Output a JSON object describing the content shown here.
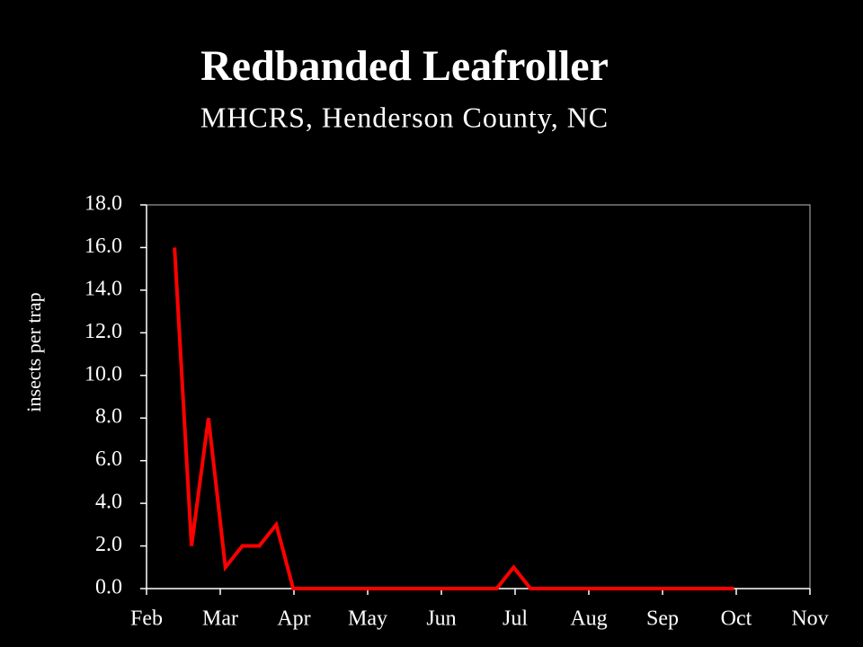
{
  "chart_data": {
    "type": "line",
    "title": "Redbanded Leafroller",
    "subtitle": "MHCRS, Henderson County, NC",
    "y_label": "insects per trap",
    "x": [
      0.38,
      0.61,
      0.84,
      1.07,
      1.3,
      1.53,
      1.76,
      1.99,
      2.22,
      2.45,
      2.68,
      2.91,
      3.14,
      3.37,
      3.6,
      3.83,
      4.06,
      4.29,
      4.52,
      4.75,
      4.98,
      5.21,
      5.44,
      5.67,
      5.9,
      6.13,
      6.36,
      6.59,
      6.82,
      7.05,
      7.28,
      7.51,
      7.74,
      7.97
    ],
    "series": [
      {
        "color": "#ff0000",
        "values": [
          16,
          2,
          8,
          1,
          2,
          2,
          3,
          0,
          0,
          0,
          0,
          0,
          0,
          0,
          0,
          0,
          0,
          0,
          0,
          0,
          1,
          0,
          0,
          0,
          0,
          0,
          0,
          0,
          0,
          0,
          0,
          0,
          0,
          0
        ]
      }
    ],
    "xlim": [
      0,
      9
    ],
    "xticks": [
      {
        "value": 0,
        "label": "Feb"
      },
      {
        "value": 1,
        "label": "Mar"
      },
      {
        "value": 2,
        "label": "Apr"
      },
      {
        "value": 3,
        "label": "May"
      },
      {
        "value": 4,
        "label": "Jun"
      },
      {
        "value": 5,
        "label": "Jul"
      },
      {
        "value": 6,
        "label": "Aug"
      },
      {
        "value": 7,
        "label": "Sep"
      },
      {
        "value": 8,
        "label": "Oct"
      },
      {
        "value": 9,
        "label": "Nov"
      }
    ],
    "ylim": [
      0,
      18
    ],
    "yticks": [
      {
        "value": 0,
        "label": "0.0"
      },
      {
        "value": 2,
        "label": "2.0"
      },
      {
        "value": 4,
        "label": "4.0"
      },
      {
        "value": 6,
        "label": "6.0"
      },
      {
        "value": 8,
        "label": "8.0"
      },
      {
        "value": 10,
        "label": "10.0"
      },
      {
        "value": 12,
        "label": "12.0"
      },
      {
        "value": 14,
        "label": "14.0"
      },
      {
        "value": 16,
        "label": "16.0"
      },
      {
        "value": 18,
        "label": "18.0"
      }
    ]
  }
}
